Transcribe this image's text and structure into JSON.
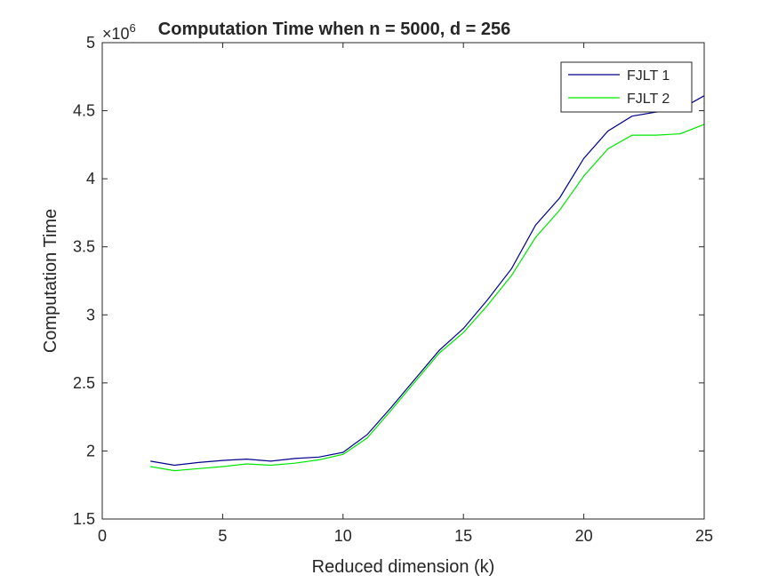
{
  "chart_data": {
    "type": "line",
    "title": "Computation Time when n = 5000, d = 256",
    "xlabel": "Reduced dimension (k)",
    "ylabel": "Computation Time",
    "y_exponent_label": "×10",
    "y_exponent_power": "6",
    "xlim": [
      0,
      25
    ],
    "ylim": [
      1.5,
      5
    ],
    "xticks": [
      0,
      5,
      10,
      15,
      20,
      25
    ],
    "yticks": [
      1.5,
      2,
      2.5,
      3,
      3.5,
      4,
      4.5,
      5
    ],
    "xtick_labels": [
      "0",
      "5",
      "10",
      "15",
      "20",
      "25"
    ],
    "ytick_labels": [
      "1.5",
      "2",
      "2.5",
      "3",
      "3.5",
      "4",
      "4.5",
      "5"
    ],
    "grid": false,
    "legend_position": "top-right",
    "x": [
      2,
      3,
      4,
      5,
      6,
      7,
      8,
      9,
      10,
      11,
      12,
      13,
      14,
      15,
      16,
      17,
      18,
      19,
      20,
      21,
      22,
      23,
      24,
      25
    ],
    "series": [
      {
        "name": "FJLT 1",
        "color": "#00008b",
        "values": [
          1.925,
          1.895,
          1.915,
          1.93,
          1.94,
          1.925,
          1.945,
          1.955,
          1.99,
          2.12,
          2.32,
          2.53,
          2.74,
          2.9,
          3.11,
          3.34,
          3.66,
          3.86,
          4.15,
          4.35,
          4.46,
          4.49,
          4.51,
          4.61
        ]
      },
      {
        "name": "FJLT 2",
        "color": "#00e600",
        "values": [
          1.885,
          1.855,
          1.87,
          1.885,
          1.905,
          1.895,
          1.91,
          1.935,
          1.975,
          2.095,
          2.3,
          2.51,
          2.72,
          2.87,
          3.07,
          3.29,
          3.57,
          3.77,
          4.02,
          4.22,
          4.32,
          4.32,
          4.33,
          4.4
        ]
      }
    ]
  }
}
